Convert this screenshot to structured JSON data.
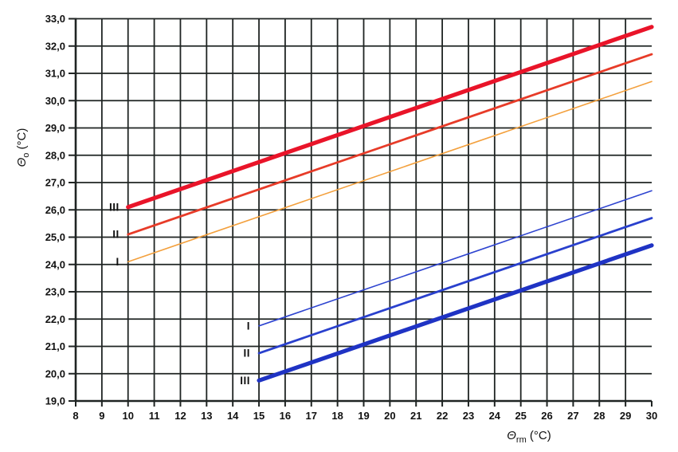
{
  "chart_data": {
    "type": "line",
    "title": "",
    "description": "Adaptive comfort chart: operative temperature limits vs running mean outdoor temperature, categories I, II, III (upper warm limits and lower cool limits)",
    "x_axis": {
      "title": {
        "symbol": "Θ",
        "subscript": "rm",
        "unit": " (°C)"
      },
      "min": 8,
      "max": 30,
      "ticks": [
        8,
        9,
        10,
        11,
        12,
        13,
        14,
        15,
        16,
        17,
        18,
        19,
        20,
        21,
        22,
        23,
        24,
        25,
        26,
        27,
        28,
        29,
        30
      ]
    },
    "y_axis": {
      "title": {
        "symbol": "Θ",
        "subscript": "o",
        "unit": " (°C)"
      },
      "min": 19,
      "max": 33,
      "ticks": [
        {
          "value": 19,
          "label": "19,0"
        },
        {
          "value": 20,
          "label": "20,0"
        },
        {
          "value": 21,
          "label": "21,0"
        },
        {
          "value": 22,
          "label": "22,0"
        },
        {
          "value": 23,
          "label": "23,0"
        },
        {
          "value": 24,
          "label": "24,0"
        },
        {
          "value": 25,
          "label": "25,0"
        },
        {
          "value": 26,
          "label": "26,0"
        },
        {
          "value": 27,
          "label": "27,0"
        },
        {
          "value": 28,
          "label": "28,0"
        },
        {
          "value": 29,
          "label": "29,0"
        },
        {
          "value": 30,
          "label": "30,0"
        },
        {
          "value": 31,
          "label": "31,0"
        },
        {
          "value": 32,
          "label": "32,0"
        },
        {
          "value": 33,
          "label": "33,0"
        }
      ]
    },
    "grid": {
      "show": true,
      "color": "#1f2423"
    },
    "axis_color": "#1f2423",
    "series": [
      {
        "id": "upper_limit_category_I",
        "label": "I",
        "group": "upper",
        "color": "#f3a03d",
        "width": 1.6,
        "points": [
          [
            10,
            24.1
          ],
          [
            30,
            30.7
          ]
        ]
      },
      {
        "id": "upper_limit_category_II",
        "label": "II",
        "group": "upper",
        "color": "#e73b28",
        "width": 2.8,
        "points": [
          [
            10,
            25.1
          ],
          [
            30,
            31.7
          ]
        ]
      },
      {
        "id": "upper_limit_category_III",
        "label": "III",
        "group": "upper",
        "color": "#e91429",
        "width": 5.2,
        "points": [
          [
            10,
            26.1
          ],
          [
            30,
            32.7
          ]
        ]
      },
      {
        "id": "lower_limit_category_I",
        "label": "I",
        "group": "lower",
        "color": "#2e44d0",
        "width": 1.6,
        "points": [
          [
            15,
            21.75
          ],
          [
            30,
            26.7
          ]
        ]
      },
      {
        "id": "lower_limit_category_II",
        "label": "II",
        "group": "lower",
        "color": "#2940cd",
        "width": 2.8,
        "points": [
          [
            15,
            20.75
          ],
          [
            30,
            25.7
          ]
        ]
      },
      {
        "id": "lower_limit_category_III",
        "label": "III",
        "group": "lower",
        "color": "#1f33c4",
        "width": 5.2,
        "points": [
          [
            15,
            19.75
          ],
          [
            30,
            24.7
          ]
        ]
      }
    ]
  },
  "colors": {
    "background": "#ffffff"
  }
}
